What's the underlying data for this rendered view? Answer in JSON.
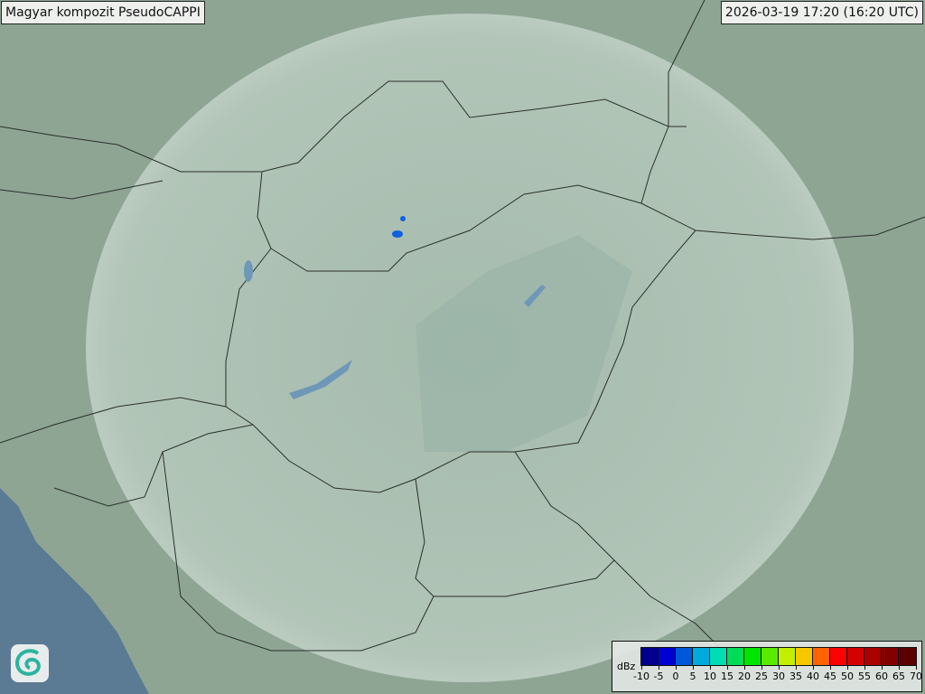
{
  "header": {
    "title": "Magyar kompozit  PseudoCAPPI",
    "timestamp": "2026-03-19 17:20 (16:20 UTC)"
  },
  "legend": {
    "unit": "dBz",
    "ticks": [
      "-10",
      "-5",
      "0",
      "5",
      "10",
      "15",
      "20",
      "25",
      "30",
      "35",
      "40",
      "45",
      "50",
      "55",
      "60",
      "65",
      "70"
    ],
    "colors": [
      "#00008c",
      "#0000d2",
      "#0058d6",
      "#00aadc",
      "#00dcb4",
      "#00dc58",
      "#00e400",
      "#5aea00",
      "#c2f000",
      "#f6c800",
      "#ff6400",
      "#ff0000",
      "#d40000",
      "#aa0000",
      "#820000",
      "#5a0000"
    ]
  },
  "logo": {
    "icon": "spiral-logo-icon"
  },
  "colors": {
    "land": "#8fa596",
    "coverage": "#b9cbbf",
    "sea": "#5b7a94",
    "border": "#2a2f2c",
    "echo": "#1060e0"
  }
}
